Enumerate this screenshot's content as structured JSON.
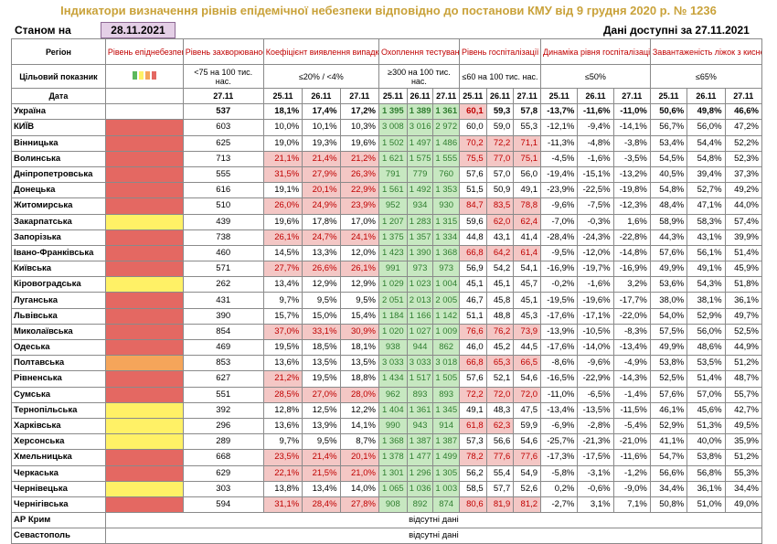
{
  "title": "Індикатори визначення рівнів епідемічної небезпеки відповідно до постанови КМУ від 9 грудня 2020 р. № 1236",
  "state_label": "Станом на",
  "state_date": "28.11.2021",
  "available_label": "Дані доступні за 27.11.2021",
  "headers": {
    "region": "Регіон",
    "target": "Цільовий показник",
    "date": "Дата",
    "level": "Рівень епіднебезпеки",
    "incidence": "Рівень захворюваності",
    "detection": "Коефіцієнт виявлення випадків інфікування",
    "testing": "Охоплення тестуванням",
    "hosp": "Рівень госпіталізації",
    "dynamics": "Динаміка рівня госпіталізацій",
    "beds": "Завантаженість ліжок з киснем",
    "t_incidence": "<75 на 100 тис. нас.",
    "t_detection": "≤20% / <4%",
    "t_testing": "≥300 на 100 тис. нас.",
    "t_hosp": "≤60 на 100 тис. нас.",
    "t_dynamics": "≤50%",
    "t_beds": "≤65%",
    "d1": "25.11",
    "d2": "26.11",
    "d3": "27.11"
  },
  "colors": {
    "red": "#e46862",
    "yellow": "#fff166",
    "orange": "#f5a55a",
    "green": "#c7e8c1",
    "pink": "#f4c7c5"
  },
  "rows": [
    {
      "name": "Україна",
      "level": "",
      "inc": "537",
      "det": [
        "18,1%",
        "17,4%",
        "17,2%"
      ],
      "tst": [
        "1 395",
        "1 389",
        "1 361"
      ],
      "hsp": [
        "60,1",
        "59,3",
        "57,8"
      ],
      "dyn": [
        "-13,7%",
        "-11,6%",
        "-11,0%"
      ],
      "bed": [
        "50,6%",
        "49,8%",
        "46,6%"
      ]
    },
    {
      "name": "КИЇВ",
      "level": "red",
      "inc": "603",
      "det": [
        "10,0%",
        "10,1%",
        "10,3%"
      ],
      "tst": [
        "3 008",
        "3 016",
        "2 972"
      ],
      "hsp": [
        "60,0",
        "59,0",
        "55,3"
      ],
      "dyn": [
        "-12,1%",
        "-9,4%",
        "-14,1%"
      ],
      "bed": [
        "56,7%",
        "56,0%",
        "47,2%"
      ]
    },
    {
      "name": "Вінницька",
      "level": "red",
      "inc": "625",
      "det": [
        "19,0%",
        "19,3%",
        "19,6%"
      ],
      "tst": [
        "1 502",
        "1 497",
        "1 486"
      ],
      "hsp": [
        "70,2",
        "72,2",
        "71,1"
      ],
      "dyn": [
        "-11,3%",
        "-4,8%",
        "-3,8%"
      ],
      "bed": [
        "53,4%",
        "54,4%",
        "52,2%"
      ]
    },
    {
      "name": "Волинська",
      "level": "red",
      "inc": "713",
      "det": [
        "21,1%",
        "21,4%",
        "21,2%"
      ],
      "tst": [
        "1 621",
        "1 575",
        "1 555"
      ],
      "hsp": [
        "75,5",
        "77,0",
        "75,1"
      ],
      "dyn": [
        "-4,5%",
        "-1,6%",
        "-3,5%"
      ],
      "bed": [
        "54,5%",
        "54,8%",
        "52,3%"
      ]
    },
    {
      "name": "Дніпропетровська",
      "level": "red",
      "inc": "555",
      "det": [
        "31,5%",
        "27,9%",
        "26,3%"
      ],
      "tst": [
        "791",
        "779",
        "760"
      ],
      "hsp": [
        "57,6",
        "57,0",
        "56,0"
      ],
      "dyn": [
        "-19,4%",
        "-15,1%",
        "-13,2%"
      ],
      "bed": [
        "40,5%",
        "39,4%",
        "37,3%"
      ]
    },
    {
      "name": "Донецька",
      "level": "red",
      "inc": "616",
      "det": [
        "19,1%",
        "20,1%",
        "22,9%"
      ],
      "tst": [
        "1 561",
        "1 492",
        "1 353"
      ],
      "hsp": [
        "51,5",
        "50,9",
        "49,1"
      ],
      "dyn": [
        "-23,9%",
        "-22,5%",
        "-19,8%"
      ],
      "bed": [
        "54,8%",
        "52,7%",
        "49,2%"
      ]
    },
    {
      "name": "Житомирська",
      "level": "red",
      "inc": "510",
      "det": [
        "26,0%",
        "24,9%",
        "23,9%"
      ],
      "tst": [
        "952",
        "934",
        "930"
      ],
      "hsp": [
        "84,7",
        "83,5",
        "78,8"
      ],
      "dyn": [
        "-9,6%",
        "-7,5%",
        "-12,3%"
      ],
      "bed": [
        "48,4%",
        "47,1%",
        "44,0%"
      ]
    },
    {
      "name": "Закарпатська",
      "level": "yellow",
      "inc": "439",
      "det": [
        "19,6%",
        "17,8%",
        "17,0%"
      ],
      "tst": [
        "1 207",
        "1 283",
        "1 315"
      ],
      "hsp": [
        "59,6",
        "62,0",
        "62,4"
      ],
      "dyn": [
        "-7,0%",
        "-0,3%",
        "1,6%"
      ],
      "bed": [
        "58,9%",
        "58,3%",
        "57,4%"
      ]
    },
    {
      "name": "Запорізька",
      "level": "red",
      "inc": "738",
      "det": [
        "26,1%",
        "24,7%",
        "24,1%"
      ],
      "tst": [
        "1 375",
        "1 357",
        "1 334"
      ],
      "hsp": [
        "44,8",
        "43,1",
        "41,4"
      ],
      "dyn": [
        "-28,4%",
        "-24,3%",
        "-22,8%"
      ],
      "bed": [
        "44,3%",
        "43,1%",
        "39,9%"
      ]
    },
    {
      "name": "Івано-Франківська",
      "level": "red",
      "inc": "460",
      "det": [
        "14,5%",
        "13,3%",
        "12,0%"
      ],
      "tst": [
        "1 423",
        "1 390",
        "1 368"
      ],
      "hsp": [
        "66,8",
        "64,2",
        "61,4"
      ],
      "dyn": [
        "-9,5%",
        "-12,0%",
        "-14,8%"
      ],
      "bed": [
        "57,6%",
        "56,1%",
        "51,4%"
      ]
    },
    {
      "name": "Київська",
      "level": "red",
      "inc": "571",
      "det": [
        "27,7%",
        "26,6%",
        "26,1%"
      ],
      "tst": [
        "991",
        "973",
        "973"
      ],
      "hsp": [
        "56,9",
        "54,2",
        "54,1"
      ],
      "dyn": [
        "-16,9%",
        "-19,7%",
        "-16,9%"
      ],
      "bed": [
        "49,9%",
        "49,1%",
        "45,9%"
      ]
    },
    {
      "name": "Кіровоградська",
      "level": "yellow",
      "inc": "262",
      "det": [
        "13,4%",
        "12,9%",
        "12,9%"
      ],
      "tst": [
        "1 029",
        "1 023",
        "1 004"
      ],
      "hsp": [
        "45,1",
        "45,1",
        "45,7"
      ],
      "dyn": [
        "-0,2%",
        "-1,6%",
        "3,2%"
      ],
      "bed": [
        "53,6%",
        "54,3%",
        "51,8%"
      ]
    },
    {
      "name": "Луганська",
      "level": "red",
      "inc": "431",
      "det": [
        "9,7%",
        "9,5%",
        "9,5%"
      ],
      "tst": [
        "2 051",
        "2 013",
        "2 005"
      ],
      "hsp": [
        "46,7",
        "45,8",
        "45,1"
      ],
      "dyn": [
        "-19,5%",
        "-19,6%",
        "-17,7%"
      ],
      "bed": [
        "38,0%",
        "38,1%",
        "36,1%"
      ]
    },
    {
      "name": "Львівська",
      "level": "red",
      "inc": "390",
      "det": [
        "15,7%",
        "15,0%",
        "15,4%"
      ],
      "tst": [
        "1 184",
        "1 166",
        "1 142"
      ],
      "hsp": [
        "51,1",
        "48,8",
        "45,3"
      ],
      "dyn": [
        "-17,6%",
        "-17,1%",
        "-22,0%"
      ],
      "bed": [
        "54,0%",
        "52,9%",
        "49,7%"
      ]
    },
    {
      "name": "Миколаївська",
      "level": "red",
      "inc": "854",
      "det": [
        "37,0%",
        "33,1%",
        "30,9%"
      ],
      "tst": [
        "1 020",
        "1 027",
        "1 009"
      ],
      "hsp": [
        "76,6",
        "76,2",
        "73,9"
      ],
      "dyn": [
        "-13,9%",
        "-10,5%",
        "-8,3%"
      ],
      "bed": [
        "57,5%",
        "56,0%",
        "52,5%"
      ]
    },
    {
      "name": "Одеська",
      "level": "red",
      "inc": "469",
      "det": [
        "19,5%",
        "18,5%",
        "18,1%"
      ],
      "tst": [
        "938",
        "944",
        "862"
      ],
      "hsp": [
        "46,0",
        "45,2",
        "44,5"
      ],
      "dyn": [
        "-17,6%",
        "-14,0%",
        "-13,4%"
      ],
      "bed": [
        "49,9%",
        "48,6%",
        "44,9%"
      ]
    },
    {
      "name": "Полтавська",
      "level": "orange",
      "inc": "853",
      "det": [
        "13,6%",
        "13,5%",
        "13,5%"
      ],
      "tst": [
        "3 033",
        "3 033",
        "3 018"
      ],
      "hsp": [
        "66,8",
        "65,3",
        "66,5"
      ],
      "dyn": [
        "-8,6%",
        "-9,6%",
        "-4,9%"
      ],
      "bed": [
        "53,8%",
        "53,5%",
        "51,2%"
      ]
    },
    {
      "name": "Рівненська",
      "level": "red",
      "inc": "627",
      "det": [
        "21,2%",
        "19,5%",
        "18,8%"
      ],
      "tst": [
        "1 434",
        "1 517",
        "1 505"
      ],
      "hsp": [
        "57,6",
        "52,1",
        "54,6"
      ],
      "dyn": [
        "-16,5%",
        "-22,9%",
        "-14,3%"
      ],
      "bed": [
        "52,5%",
        "51,4%",
        "48,7%"
      ]
    },
    {
      "name": "Сумська",
      "level": "red",
      "inc": "551",
      "det": [
        "28,5%",
        "27,0%",
        "28,0%"
      ],
      "tst": [
        "962",
        "893",
        "893"
      ],
      "hsp": [
        "72,2",
        "72,0",
        "72,0"
      ],
      "dyn": [
        "-11,0%",
        "-6,5%",
        "-1,4%"
      ],
      "bed": [
        "57,6%",
        "57,0%",
        "55,7%"
      ]
    },
    {
      "name": "Тернопільська",
      "level": "yellow",
      "inc": "392",
      "det": [
        "12,8%",
        "12,5%",
        "12,2%"
      ],
      "tst": [
        "1 404",
        "1 361",
        "1 345"
      ],
      "hsp": [
        "49,1",
        "48,3",
        "47,5"
      ],
      "dyn": [
        "-13,4%",
        "-13,5%",
        "-11,5%"
      ],
      "bed": [
        "46,1%",
        "45,6%",
        "42,7%"
      ]
    },
    {
      "name": "Харківська",
      "level": "yellow",
      "inc": "296",
      "det": [
        "13,6%",
        "13,9%",
        "14,1%"
      ],
      "tst": [
        "990",
        "943",
        "914"
      ],
      "hsp": [
        "61,8",
        "62,3",
        "59,9"
      ],
      "dyn": [
        "-6,9%",
        "-2,8%",
        "-5,4%"
      ],
      "bed": [
        "52,9%",
        "51,3%",
        "49,5%"
      ]
    },
    {
      "name": "Херсонська",
      "level": "yellow",
      "inc": "289",
      "det": [
        "9,7%",
        "9,5%",
        "8,7%"
      ],
      "tst": [
        "1 368",
        "1 387",
        "1 387"
      ],
      "hsp": [
        "57,3",
        "56,6",
        "54,6"
      ],
      "dyn": [
        "-25,7%",
        "-21,3%",
        "-21,0%"
      ],
      "bed": [
        "41,1%",
        "40,0%",
        "35,9%"
      ]
    },
    {
      "name": "Хмельницька",
      "level": "red",
      "inc": "668",
      "det": [
        "23,5%",
        "21,4%",
        "20,1%"
      ],
      "tst": [
        "1 378",
        "1 477",
        "1 499"
      ],
      "hsp": [
        "78,2",
        "77,6",
        "77,6"
      ],
      "dyn": [
        "-17,3%",
        "-17,5%",
        "-11,6%"
      ],
      "bed": [
        "54,7%",
        "53,8%",
        "51,2%"
      ]
    },
    {
      "name": "Черкаська",
      "level": "red",
      "inc": "629",
      "det": [
        "22,1%",
        "21,5%",
        "21,0%"
      ],
      "tst": [
        "1 301",
        "1 296",
        "1 305"
      ],
      "hsp": [
        "56,2",
        "55,4",
        "54,9"
      ],
      "dyn": [
        "-5,8%",
        "-3,1%",
        "-1,2%"
      ],
      "bed": [
        "56,6%",
        "56,8%",
        "55,3%"
      ]
    },
    {
      "name": "Чернівецька",
      "level": "yellow",
      "inc": "303",
      "det": [
        "13,8%",
        "13,4%",
        "14,0%"
      ],
      "tst": [
        "1 065",
        "1 036",
        "1 003"
      ],
      "hsp": [
        "58,5",
        "57,7",
        "52,6"
      ],
      "dyn": [
        "0,2%",
        "-0,6%",
        "-9,0%"
      ],
      "bed": [
        "34,4%",
        "36,1%",
        "34,4%"
      ]
    },
    {
      "name": "Чернігівська",
      "level": "red",
      "inc": "594",
      "det": [
        "31,1%",
        "28,4%",
        "27,8%"
      ],
      "tst": [
        "908",
        "892",
        "874"
      ],
      "hsp": [
        "80,6",
        "81,9",
        "81,2"
      ],
      "dyn": [
        "-2,7%",
        "3,1%",
        "7,1%"
      ],
      "bed": [
        "50,8%",
        "51,0%",
        "49,0%"
      ]
    }
  ],
  "no_data_rows": [
    {
      "name": "АР Крим",
      "text": "відсутні дані"
    },
    {
      "name": "Севастополь",
      "text": "відсутні дані"
    }
  ]
}
